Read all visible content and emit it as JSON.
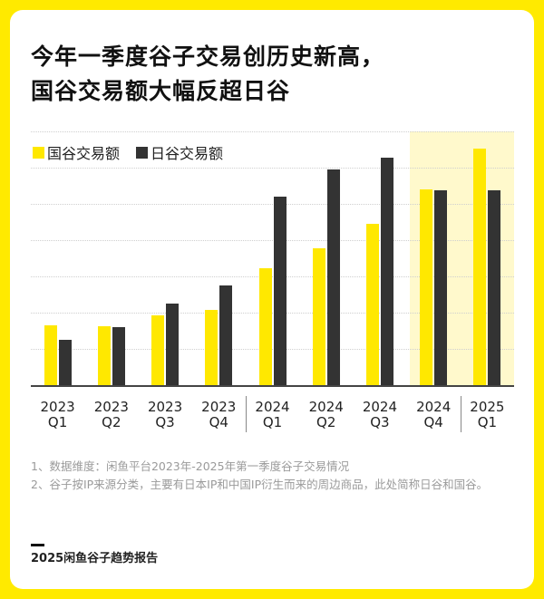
{
  "title": {
    "line1": "今年一季度谷子交易创历史新高，",
    "line2": "国谷交易额大幅反超日谷"
  },
  "legend": [
    {
      "label": "国谷交易额",
      "color": "#FFE800"
    },
    {
      "label": "日谷交易额",
      "color": "#333333"
    }
  ],
  "chart_data": {
    "type": "bar",
    "title": "今年一季度谷子交易创历史新高，国谷交易额大幅反超日谷",
    "xlabel": "",
    "ylabel": "",
    "categories": [
      "2023 Q1",
      "2023 Q2",
      "2023 Q3",
      "2023 Q4",
      "2024 Q1",
      "2024 Q2",
      "2024 Q3",
      "2024 Q4",
      "2025 Q1"
    ],
    "category_lines": [
      [
        "2023",
        "Q1"
      ],
      [
        "2023",
        "Q2"
      ],
      [
        "2023",
        "Q3"
      ],
      [
        "2023",
        "Q4"
      ],
      [
        "2024",
        "Q1"
      ],
      [
        "2024",
        "Q2"
      ],
      [
        "2024",
        "Q3"
      ],
      [
        "2024",
        "Q4"
      ],
      [
        "2025",
        "Q1"
      ]
    ],
    "series": [
      {
        "name": "国谷交易额",
        "color": "#FFE800",
        "values": [
          66,
          65,
          77,
          83,
          129,
          151,
          178,
          216,
          261
        ]
      },
      {
        "name": "日谷交易额",
        "color": "#333333",
        "values": [
          50,
          64,
          90,
          110,
          208,
          238,
          251,
          215,
          215
        ]
      }
    ],
    "ylim": [
      0,
      280
    ],
    "gridlines": 7,
    "grid": true,
    "y_axis_labels_shown": false,
    "legend_position": "top-left",
    "highlighted_categories": [
      "2024 Q4",
      "2025 Q1"
    ],
    "highlight_color": "#FFF9CC",
    "year_separators_after": [
      "2023 Q4",
      "2024 Q4"
    ]
  },
  "notes": [
    "1、数据维度：闲鱼平台2023年-2025年第一季度谷子交易情况",
    "2、谷子按IP来源分类，主要有日本IP和中国IP衍生而来的周边商品，此处简称日谷和国谷。"
  ],
  "footer": {
    "label": "2025闲鱼谷子趋势报告"
  },
  "colors": {
    "frame": "#FFEA00",
    "yellow_bar": "#FFE800",
    "dark_bar": "#333333"
  }
}
